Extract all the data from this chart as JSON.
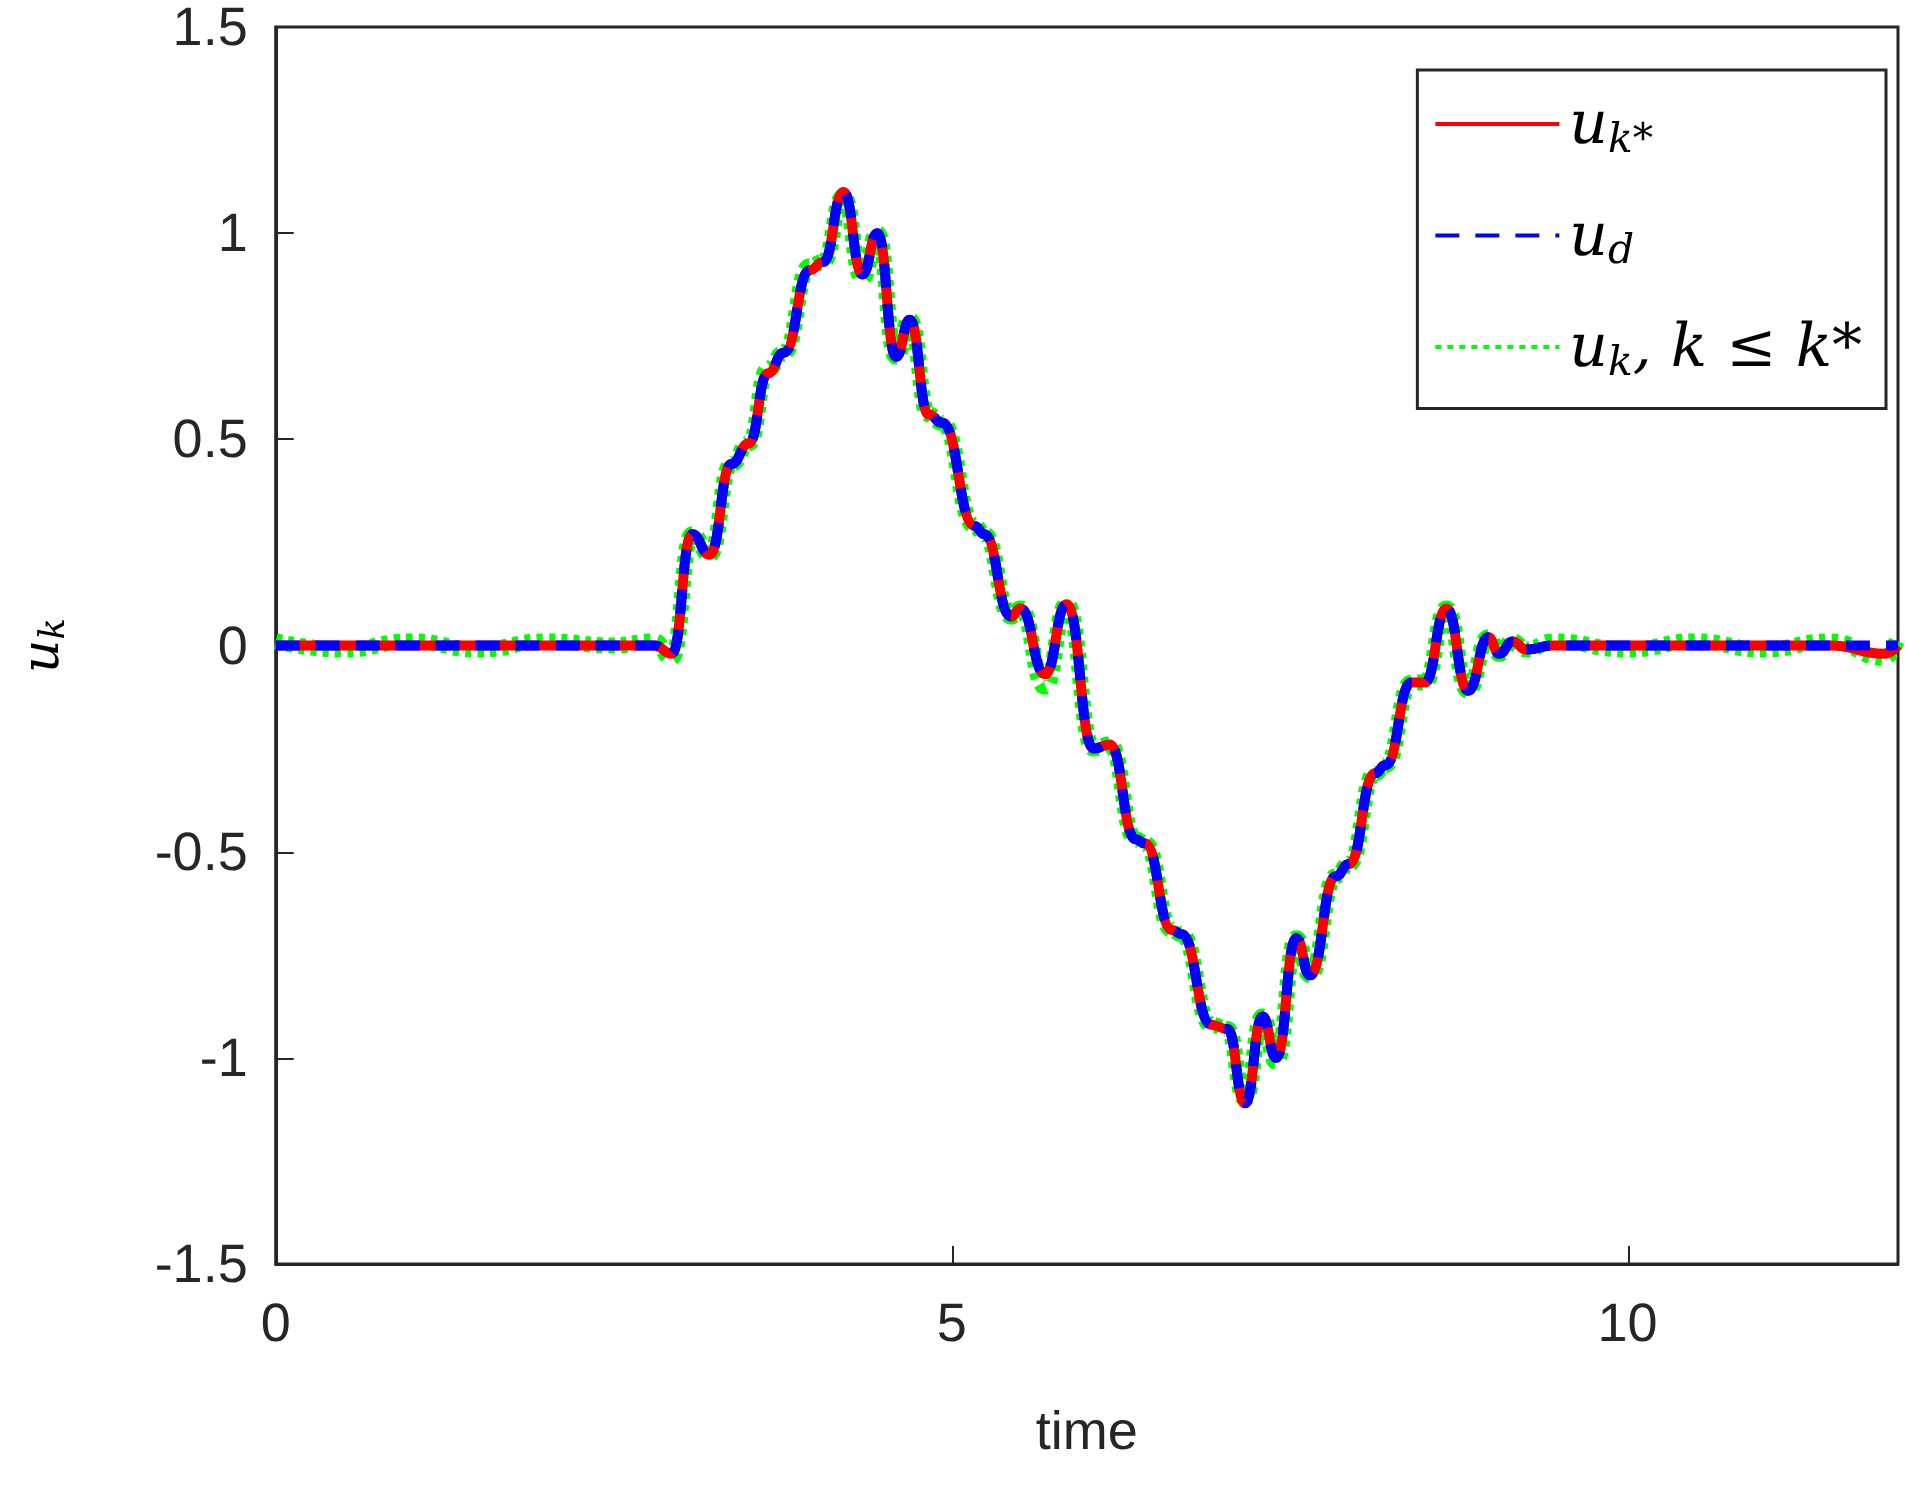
{
  "chart_data": {
    "type": "line",
    "xlabel": "time",
    "ylabel": "u$_{k}$",
    "xlim": [
      0,
      12
    ],
    "xticks": [
      0,
      5,
      10
    ],
    "ylim": [
      -1.5,
      1.5
    ],
    "yticks": [
      -1.5,
      -1,
      -0.5,
      0,
      0.5,
      1,
      1.5
    ],
    "grid": false,
    "legend": "top right",
    "marker": "none",
    "x": [
      0,
      0.5,
      1,
      1.5,
      2,
      2.5,
      2.8,
      2.93,
      3.08,
      3.21,
      3.37,
      3.5,
      3.64,
      3.76,
      3.95,
      4.05,
      4.2,
      4.34,
      4.45,
      4.59,
      4.69,
      4.83,
      4.93,
      5.17,
      5.24,
      5.44,
      5.51,
      5.69,
      5.85,
      6.05,
      6.17,
      6.36,
      6.43,
      6.63,
      6.7,
      6.92,
      7.04,
      7.17,
      7.3,
      7.4,
      7.55,
      7.65,
      7.84,
      7.94,
      8.13,
      8.21,
      8.4,
      8.5,
      8.66,
      8.82,
      8.97,
      9.05,
      9.15,
      9.25,
      9.45,
      10,
      10.5,
      11,
      11.5,
      11.9,
      12
    ],
    "series": [
      {
        "name": "u$_{k*}$",
        "color": "#ff0000",
        "line_style": "solid",
        "values": [
          0,
          0,
          0,
          0,
          0,
          0,
          0,
          -0.02,
          0.27,
          0.22,
          0.44,
          0.49,
          0.66,
          0.71,
          0.91,
          0.93,
          1.1,
          0.9,
          1.0,
          0.7,
          0.79,
          0.56,
          0.54,
          0.29,
          0.27,
          0.07,
          0.09,
          -0.07,
          0.1,
          -0.25,
          -0.24,
          -0.47,
          -0.48,
          -0.69,
          -0.7,
          -0.92,
          -0.93,
          -1.11,
          -0.9,
          -1.0,
          -0.71,
          -0.8,
          -0.56,
          -0.53,
          -0.31,
          -0.29,
          -0.09,
          -0.09,
          0.09,
          -0.11,
          0.02,
          -0.02,
          0.01,
          -0.01,
          0,
          0,
          0,
          0,
          0,
          -0.02,
          0
        ]
      },
      {
        "name": "u$_{d}$",
        "color": "#0000ff",
        "line_style": "dashed",
        "values": [
          0,
          0,
          0,
          0,
          0,
          0,
          0,
          -0.02,
          0.27,
          0.22,
          0.44,
          0.49,
          0.66,
          0.71,
          0.91,
          0.93,
          1.1,
          0.9,
          1.0,
          0.7,
          0.79,
          0.56,
          0.54,
          0.29,
          0.27,
          0.07,
          0.09,
          -0.07,
          0.1,
          -0.25,
          -0.24,
          -0.47,
          -0.48,
          -0.69,
          -0.7,
          -0.92,
          -0.93,
          -1.11,
          -0.9,
          -1.0,
          -0.71,
          -0.8,
          -0.56,
          -0.53,
          -0.31,
          -0.29,
          -0.09,
          -0.09,
          0.09,
          -0.11,
          0.02,
          -0.02,
          0.01,
          -0.01,
          0,
          0,
          0,
          0,
          0,
          0,
          0
        ]
      },
      {
        "name": "u$_{k}$, k ≤ k*",
        "color": "#00ff00",
        "line_style": "dotted",
        "values": [
          0.01,
          -0.01,
          0.01,
          -0.01,
          0.01,
          0,
          0.01,
          -0.03,
          0.27,
          0.22,
          0.44,
          0.49,
          0.67,
          0.71,
          0.92,
          0.93,
          1.09,
          0.89,
          1.0,
          0.7,
          0.79,
          0.56,
          0.54,
          0.29,
          0.27,
          0.07,
          0.09,
          -0.1,
          0.1,
          -0.25,
          -0.24,
          -0.47,
          -0.48,
          -0.69,
          -0.7,
          -0.92,
          -0.93,
          -1.1,
          -0.9,
          -1.01,
          -0.71,
          -0.8,
          -0.56,
          -0.53,
          -0.31,
          -0.29,
          -0.09,
          -0.09,
          0.09,
          -0.11,
          0.02,
          -0.02,
          0.01,
          -0.01,
          0.01,
          -0.01,
          0.01,
          -0.01,
          0.01,
          -0.03,
          0.02
        ]
      }
    ]
  }
}
